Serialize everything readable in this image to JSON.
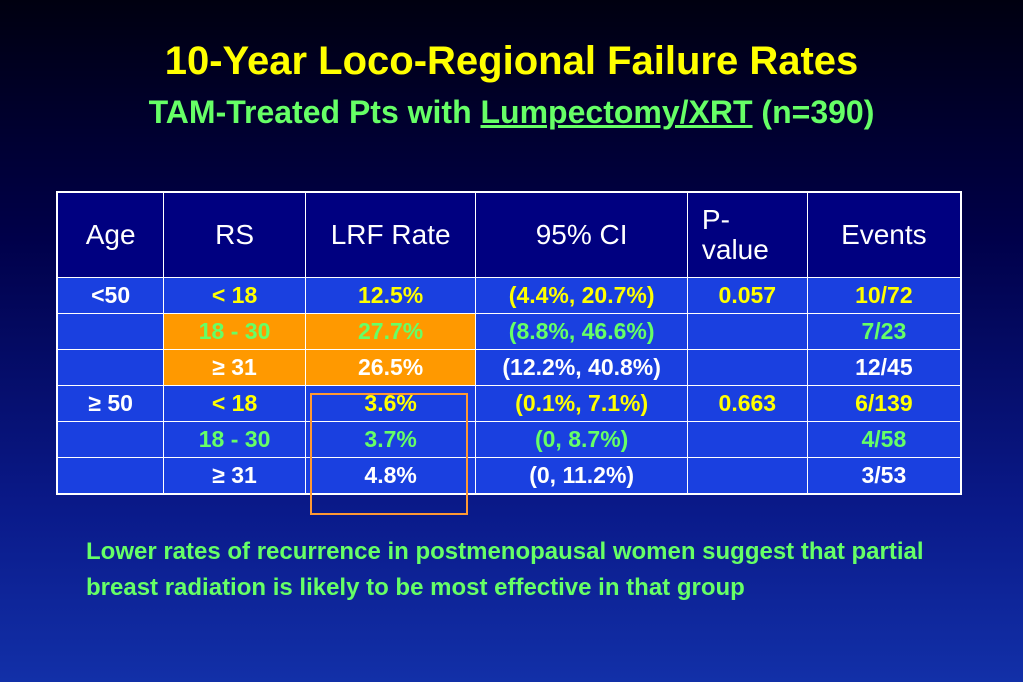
{
  "title": "10-Year Loco-Regional Failure Rates",
  "subtitle": {
    "prefix": "TAM-Treated Pts with ",
    "underlined": "Lumpectomy/XRT",
    "suffix": " (n=390)"
  },
  "table": {
    "headers": {
      "age": "Age",
      "rs": "RS",
      "lrf": "LRF Rate",
      "ci": "95% CI",
      "p_line1": "P-",
      "p_line2": "value",
      "events": "Events"
    },
    "rows": [
      {
        "age": "<50",
        "rs": "< 18",
        "lrf": "12.5%",
        "ci": "(4.4%, 20.7%)",
        "p": "0.057",
        "events": "10/72"
      },
      {
        "age": "",
        "rs": "18 - 30",
        "lrf": "27.7%",
        "ci": "(8.8%, 46.6%)",
        "p": "",
        "events": "7/23"
      },
      {
        "age": "",
        "rs": "≥ 31",
        "lrf": "26.5%",
        "ci": "(12.2%, 40.8%)",
        "p": "",
        "events": "12/45"
      },
      {
        "age": "≥ 50",
        "rs": "< 18",
        "lrf": "3.6%",
        "ci": "(0.1%, 7.1%)",
        "p": "0.663",
        "events": "6/139"
      },
      {
        "age": "",
        "rs": "18 - 30",
        "lrf": "3.7%",
        "ci": "(0, 8.7%)",
        "p": "",
        "events": "4/58"
      },
      {
        "age": "",
        "rs": "≥ 31",
        "lrf": "4.8%",
        "ci": "(0, 11.2%)",
        "p": "",
        "events": "3/53"
      }
    ]
  },
  "note": "Lower rates of recurrence in postmenopausal women suggest that partial breast radiation is likely to be most effective in that group",
  "colors": {
    "title": "#ffff00",
    "subtitle": "#66ff66",
    "header_bg": "#000080",
    "cell_bg": "#1a40e0",
    "highlight": "#ff9900",
    "box_border": "#ff9933"
  }
}
